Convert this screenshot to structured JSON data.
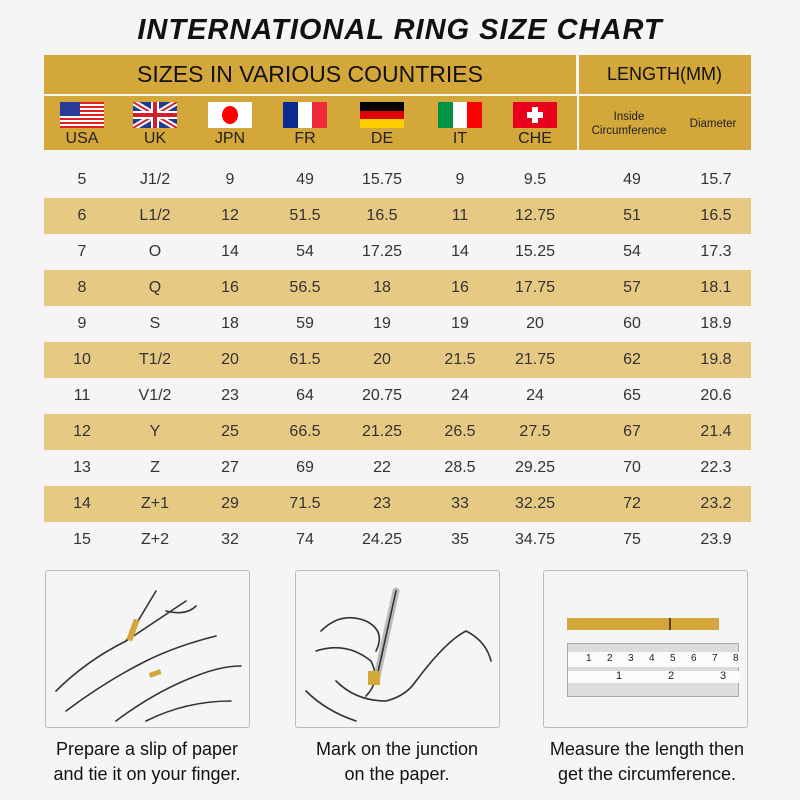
{
  "title": "INTERNATIONAL RING SIZE CHART",
  "header": {
    "countries_title": "SIZES IN VARIOUS COUNTRIES",
    "length_title": "LENGTH(MM)",
    "countries": [
      {
        "label": "USA",
        "icon": "usa-flag-icon"
      },
      {
        "label": "UK",
        "icon": "uk-flag-icon"
      },
      {
        "label": "JPN",
        "icon": "japan-flag-icon"
      },
      {
        "label": "FR",
        "icon": "france-flag-icon"
      },
      {
        "label": "DE",
        "icon": "germany-flag-icon"
      },
      {
        "label": "IT",
        "icon": "italy-flag-icon"
      },
      {
        "label": "CHE",
        "icon": "switzerland-flag-icon"
      }
    ],
    "inside": "Inside",
    "circumference": "Circumference",
    "diameter": "Diameter"
  },
  "rows": [
    [
      "5",
      "J1/2",
      "9",
      "49",
      "15.75",
      "9",
      "9.5",
      "49",
      "15.7"
    ],
    [
      "6",
      "L1/2",
      "12",
      "51.5",
      "16.5",
      "11",
      "12.75",
      "51",
      "16.5"
    ],
    [
      "7",
      "O",
      "14",
      "54",
      "17.25",
      "14",
      "15.25",
      "54",
      "17.3"
    ],
    [
      "8",
      "Q",
      "16",
      "56.5",
      "18",
      "16",
      "17.75",
      "57",
      "18.1"
    ],
    [
      "9",
      "S",
      "18",
      "59",
      "19",
      "19",
      "20",
      "60",
      "18.9"
    ],
    [
      "10",
      "T1/2",
      "20",
      "61.5",
      "20",
      "21.5",
      "21.75",
      "62",
      "19.8"
    ],
    [
      "11",
      "V1/2",
      "23",
      "64",
      "20.75",
      "24",
      "24",
      "65",
      "20.6"
    ],
    [
      "12",
      "Y",
      "25",
      "66.5",
      "21.25",
      "26.5",
      "27.5",
      "67",
      "21.4"
    ],
    [
      "13",
      "Z",
      "27",
      "69",
      "22",
      "28.5",
      "29.25",
      "70",
      "22.3"
    ],
    [
      "14",
      "Z+1",
      "29",
      "71.5",
      "23",
      "33",
      "32.25",
      "72",
      "23.2"
    ],
    [
      "15",
      "Z+2",
      "32",
      "74",
      "24.25",
      "35",
      "34.75",
      "75",
      "23.9"
    ]
  ],
  "steps": [
    {
      "line1": "Prepare a slip of paper",
      "line2": "and tie it on your finger."
    },
    {
      "line1": "Mark on the junction",
      "line2": "on the paper."
    },
    {
      "line1": "Measure the length then",
      "line2": "get the circumference."
    }
  ],
  "ruler": {
    "cm": [
      "1",
      "2",
      "3",
      "4",
      "5",
      "6",
      "7",
      "8"
    ],
    "inch": [
      "1",
      "2",
      "3"
    ]
  },
  "colors": {
    "header": "#d4a73a",
    "stripe": "#e6c983",
    "background": "#f5f5f5"
  }
}
